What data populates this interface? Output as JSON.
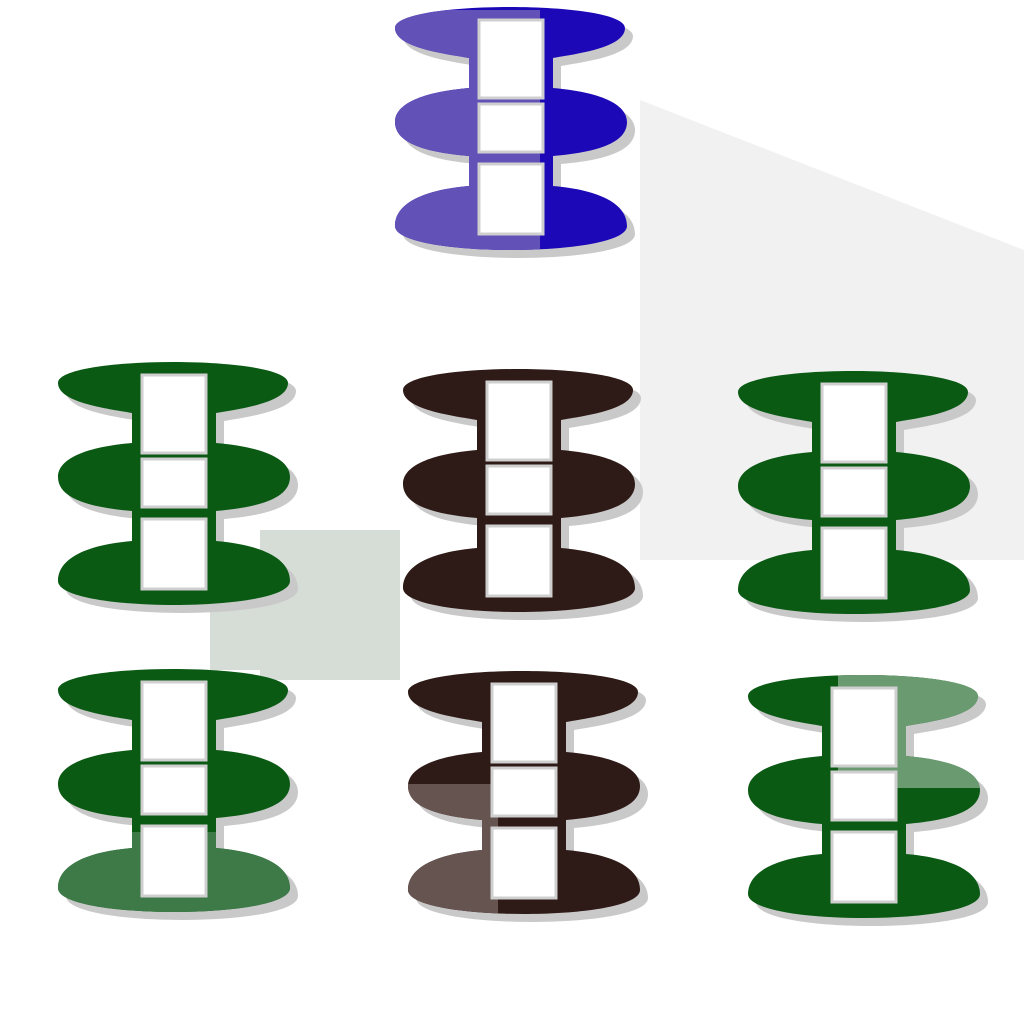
{
  "palette": {
    "blue": "#1d08b8",
    "blue_light": "#6252b8",
    "dark_green": "#0a5a14",
    "dark_green_light": "#3e7a48",
    "soft_green": "#6a9a70",
    "dark_brown": "#2e1a16",
    "brown_light": "#665450",
    "shadow": "#c9c9c9",
    "slot": "#ffffff",
    "background_smudge": "#d6dcd6"
  },
  "pieces": [
    {
      "id": "top-center",
      "icon": "spool-icon",
      "color": "blue",
      "highlight": "blue_light"
    },
    {
      "id": "mid-left",
      "icon": "spool-icon",
      "color": "dark_green"
    },
    {
      "id": "mid-center",
      "icon": "spool-icon",
      "color": "dark_brown"
    },
    {
      "id": "mid-right",
      "icon": "spool-icon",
      "color": "dark_green"
    },
    {
      "id": "bottom-left",
      "icon": "spool-icon",
      "color": "dark_green",
      "highlight": "dark_green_light"
    },
    {
      "id": "bottom-center",
      "icon": "spool-icon",
      "color": "dark_brown",
      "highlight": "brown_light"
    },
    {
      "id": "bottom-right",
      "icon": "spool-icon",
      "color": "dark_green",
      "highlight": "soft_green"
    }
  ]
}
